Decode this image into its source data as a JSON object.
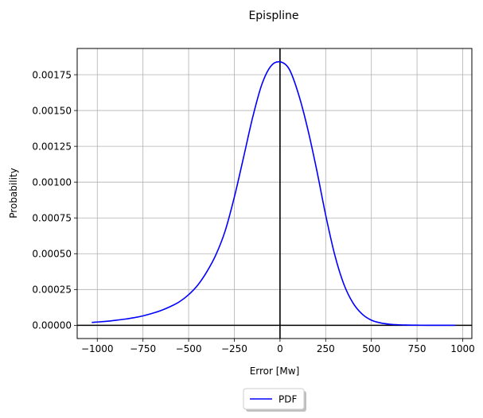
{
  "chart_data": {
    "type": "line",
    "title": "Epispline",
    "xlabel": "Error [Mw]",
    "ylabel": "Probability",
    "xlim": [
      -1110,
      1050
    ],
    "ylim": [
      -9.23e-05,
      0.0019333
    ],
    "grid": true,
    "legend": {
      "position": "bottom-center",
      "frame": true,
      "shadow": true
    },
    "x_ticks": [
      -1000,
      -750,
      -500,
      -250,
      0,
      250,
      500,
      750,
      1000
    ],
    "x_tick_labels": [
      "−1000",
      "−750",
      "−500",
      "−250",
      "0",
      "250",
      "500",
      "750",
      "1000"
    ],
    "y_ticks": [
      0,
      0.00025,
      0.0005,
      0.00075,
      0.001,
      0.00125,
      0.0015,
      0.00175
    ],
    "y_tick_labels": [
      "0.00000",
      "0.00025",
      "0.00050",
      "0.00075",
      "0.00100",
      "0.00125",
      "0.00150",
      "0.00175"
    ],
    "reference_lines": {
      "vertical_x": 0,
      "horizontal_y": 0,
      "color": "#000000"
    },
    "series": [
      {
        "name": "PDF",
        "color": "#0000ff",
        "x": [
          -1030,
          -950,
          -900,
          -850,
          -800,
          -750,
          -700,
          -650,
          -600,
          -550,
          -500,
          -450,
          -400,
          -350,
          -300,
          -250,
          -200,
          -150,
          -100,
          -50,
          0,
          50,
          100,
          150,
          200,
          250,
          300,
          350,
          400,
          450,
          500,
          550,
          600,
          650,
          700,
          750,
          800,
          900,
          960
        ],
        "y": [
          2e-05,
          2.8e-05,
          3.5e-05,
          4.3e-05,
          5.3e-05,
          6.6e-05,
          8.3e-05,
          0.000104,
          0.000131,
          0.000165,
          0.000214,
          0.000281,
          0.000375,
          0.000495,
          0.00066,
          0.000895,
          0.00117,
          0.00145,
          0.00168,
          0.00181,
          0.00184,
          0.00179,
          0.00162,
          0.00138,
          0.00109,
          0.00077,
          0.00049,
          0.000285,
          0.000155,
          7.8e-05,
          3.6e-05,
          1.7e-05,
          7.5e-06,
          3.5e-06,
          1.6e-06,
          8e-07,
          4e-07,
          1e-07,
          1e-07
        ]
      }
    ]
  }
}
